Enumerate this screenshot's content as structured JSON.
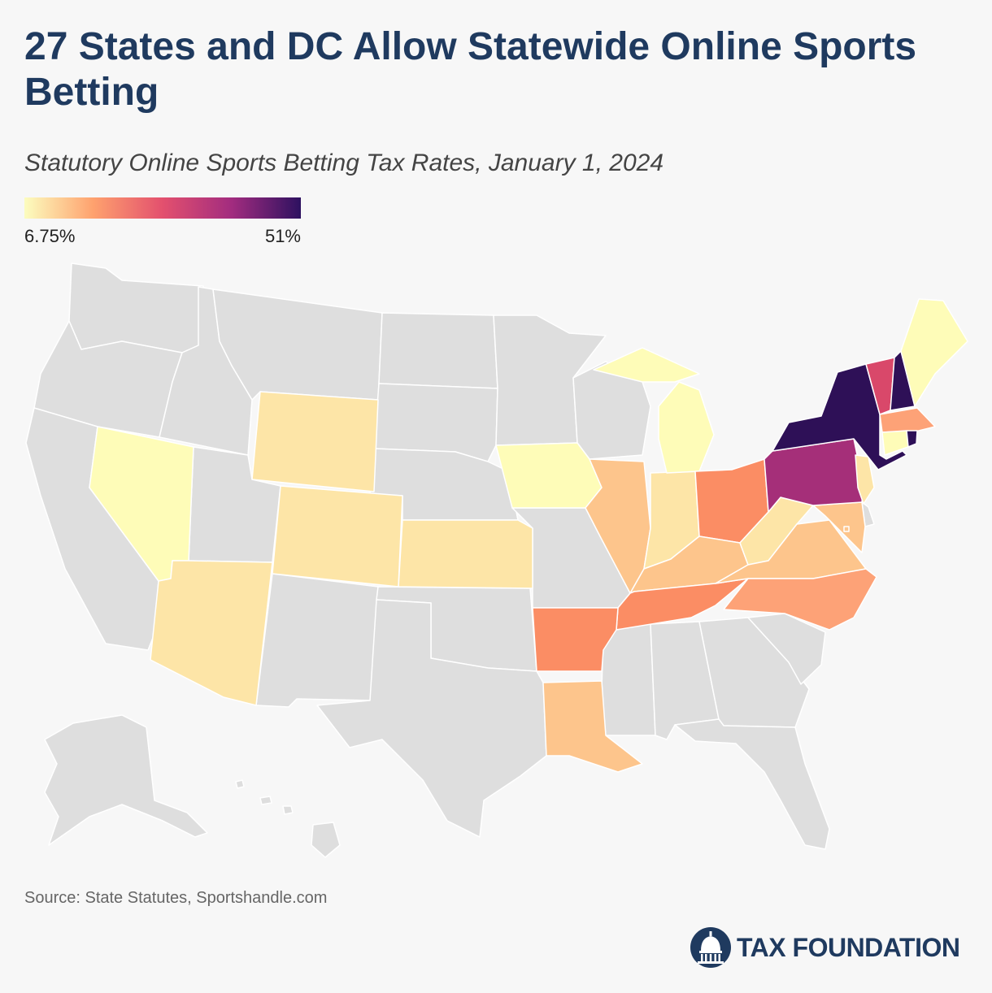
{
  "title": "27 States and DC Allow Statewide Online Sports Betting",
  "subtitle": "Statutory Online Sports Betting Tax Rates, January 1, 2024",
  "legend": {
    "min_label": "6.75%",
    "max_label": "51%",
    "colors": [
      "#fcfdbf",
      "#fea16e",
      "#e3506e",
      "#a22c7f",
      "#2d1160"
    ]
  },
  "colors": {
    "no_online_betting": "#dedede",
    "background": "#f7f7f7",
    "title": "#1f3a5f",
    "rate_6_75_10": "#fefcb8",
    "rate_10_20": "#fde5a7",
    "rate_13_18": "#fdc58c",
    "rate_20_25": "#fda277",
    "rate_25_30": "#fb8d64",
    "rate_30_35": "#d9486a",
    "rate_35_40": "#a52f79",
    "rate_51": "#2e1057"
  },
  "source": "Source: State Statutes, Sportshandle.com",
  "logo": {
    "text": "TAX FOUNDATION",
    "icon": "capitol-dome-icon"
  }
}
